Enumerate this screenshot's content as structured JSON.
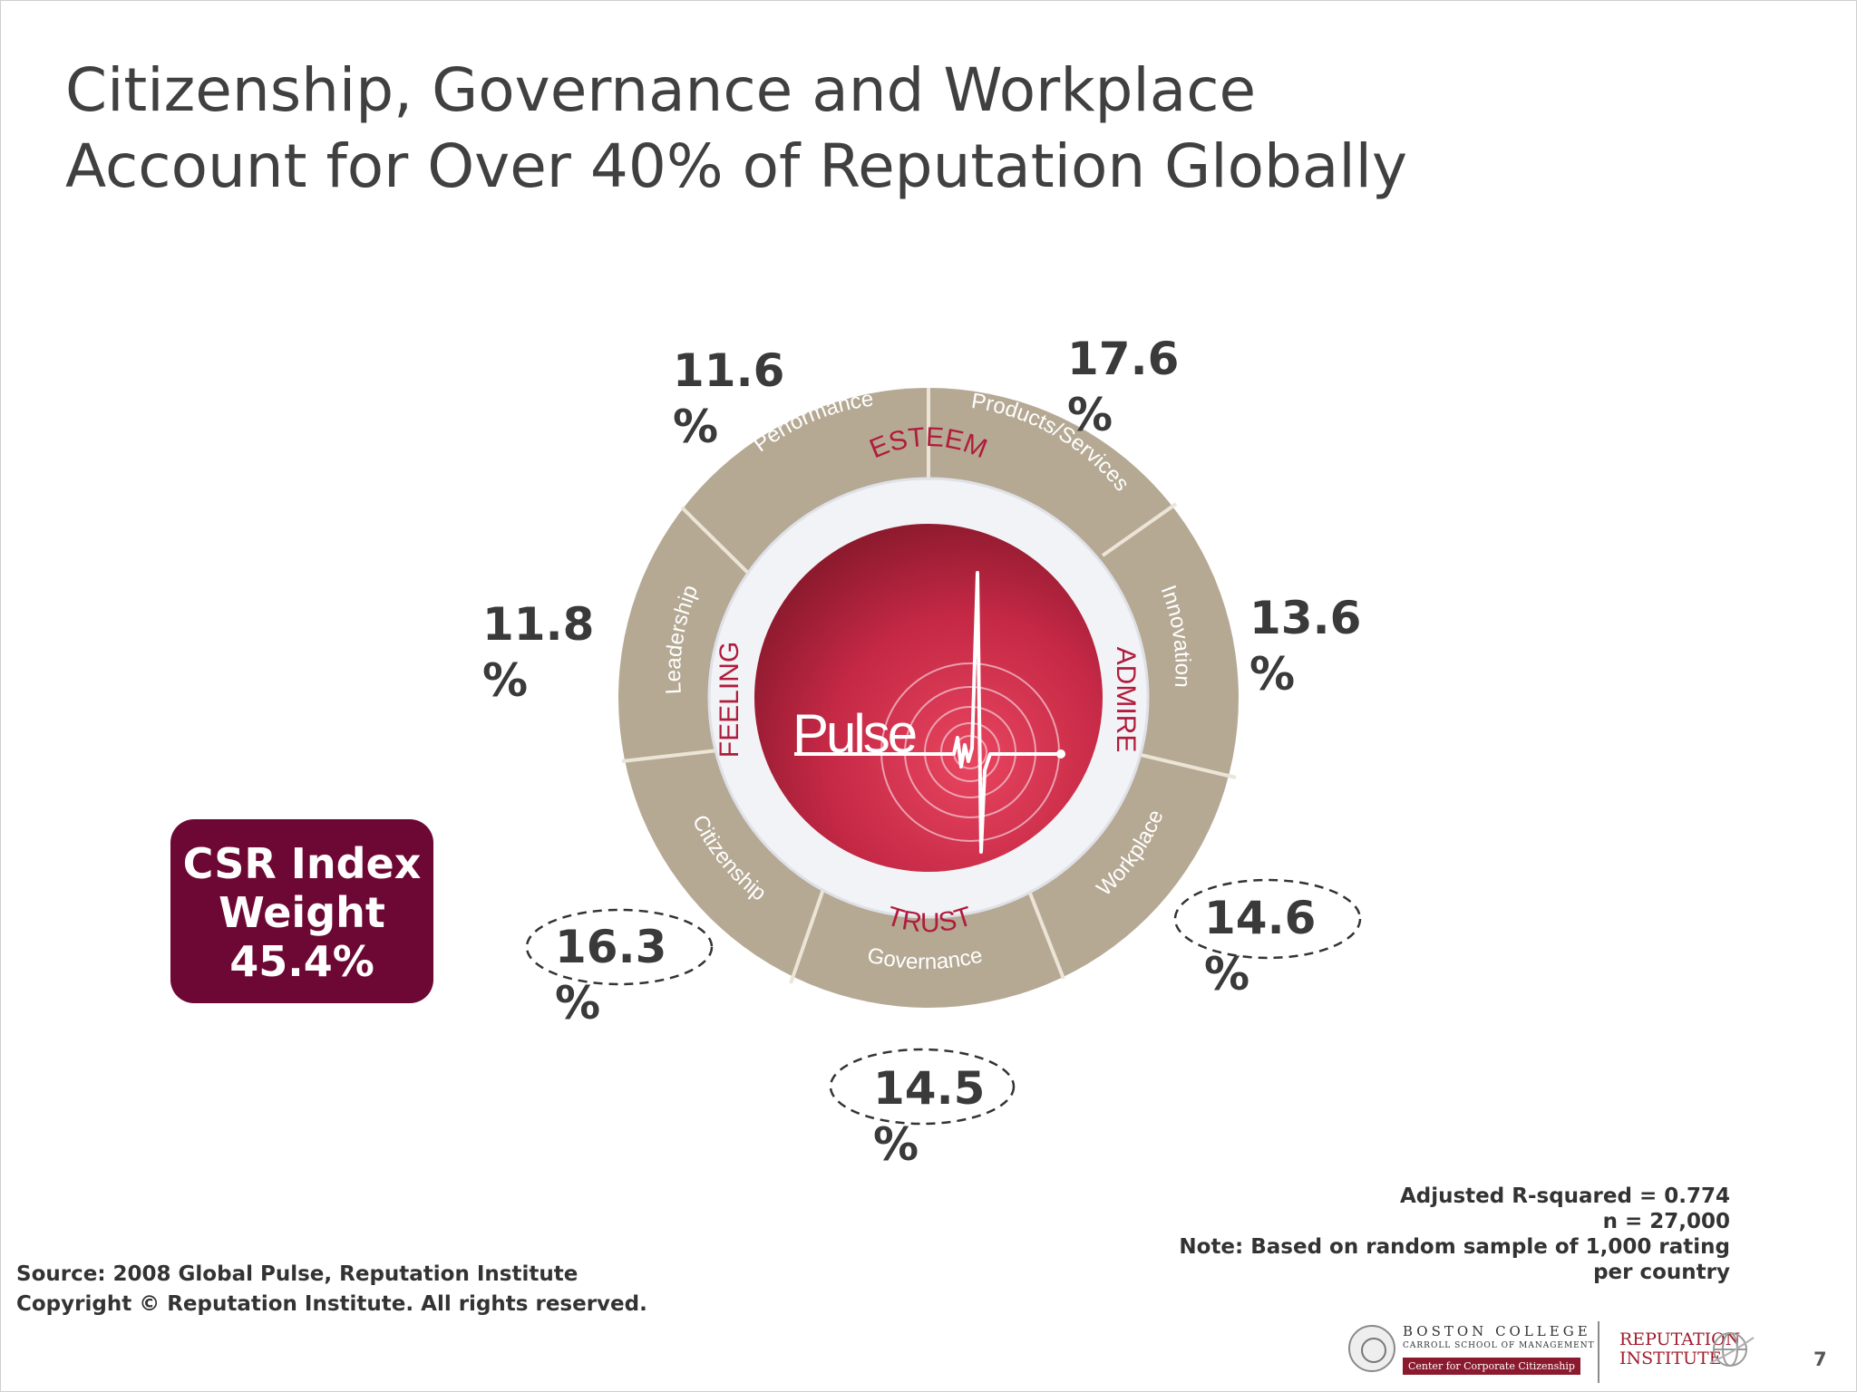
{
  "title": {
    "line1": "Citizenship, Governance and Workplace",
    "line2": "Account for Over 40% of Reputation Globally"
  },
  "wheel": {
    "center_label": "Pulse",
    "inner_labels": {
      "top": "ESTEEM",
      "right": "ADMIRE",
      "bottom": "TRUST",
      "left": "FEELING"
    },
    "segments": [
      {
        "name": "Performance",
        "weight": "11.6\n%",
        "highlighted": false
      },
      {
        "name": "Products/Services",
        "weight": "17.6\n%",
        "highlighted": false
      },
      {
        "name": "Innovation",
        "weight": "13.6\n%",
        "highlighted": false
      },
      {
        "name": "Workplace",
        "weight": "14.6\n%",
        "highlighted": true
      },
      {
        "name": "Governance",
        "weight": "14.5\n%",
        "highlighted": true
      },
      {
        "name": "Citizenship",
        "weight": "16.3\n%",
        "highlighted": true
      },
      {
        "name": "Leadership",
        "weight": "11.8\n%",
        "highlighted": false
      }
    ],
    "colors": {
      "ring": "#b5a994",
      "core": "#c42845",
      "text_red": "#b01c3c"
    }
  },
  "csr_box": {
    "text": "CSR Index Weight 45.4%",
    "color": "#6d0733"
  },
  "stats": {
    "line1": "Adjusted R-squared = 0.774",
    "line2": "n = 27,000",
    "line3": "Note: Based on random sample of 1,000 rating",
    "line4": "per country"
  },
  "source": {
    "line1": "Source: 2008 Global Pulse, Reputation Institute",
    "line2": "Copyright © Reputation Institute. All rights reserved."
  },
  "logos": {
    "bc_name": "BOSTON COLLEGE",
    "bc_school": "CARROLL SCHOOL OF MANAGEMENT",
    "bc_center": "Center for Corporate Citizenship",
    "ri_line1": "REPUTATION",
    "ri_line2": "INSTITUTE"
  },
  "page_number": "7"
}
